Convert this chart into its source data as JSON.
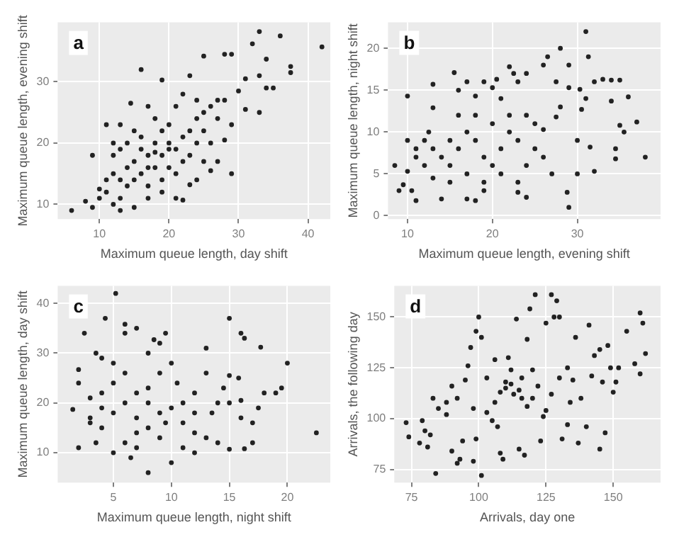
{
  "chart_data": [
    {
      "type": "scatter",
      "title": "a",
      "xlabel": "Maximum queue length, day shift",
      "ylabel": "Maximum queue length, evening shift",
      "color": "#222222",
      "marker": "circle",
      "grid": true,
      "legend": false,
      "xlim": [
        4,
        43.2
      ],
      "ylim": [
        7.6,
        39.7
      ],
      "xticks": [
        10,
        20,
        30,
        40
      ],
      "yticks": [
        10,
        20,
        30
      ],
      "x": [
        6,
        8,
        9,
        42,
        36,
        33,
        32,
        37.5,
        37.5,
        34,
        35,
        34,
        33,
        33,
        31,
        29,
        29,
        26,
        25,
        28,
        29,
        31,
        30,
        16,
        19,
        23,
        14.5,
        17,
        11,
        13,
        9,
        10,
        11,
        12,
        13,
        13,
        15,
        17,
        21,
        22,
        23,
        24,
        27,
        28,
        27,
        26,
        25,
        24,
        22,
        21,
        20,
        19,
        18,
        17,
        16,
        15,
        14,
        13,
        12,
        11,
        12,
        14,
        15,
        18,
        20,
        22,
        23,
        20,
        19,
        21,
        24,
        25,
        26,
        18,
        16,
        14,
        17,
        19,
        10,
        22,
        23,
        25,
        27,
        28,
        24,
        20,
        21,
        19,
        18,
        16,
        13,
        12,
        15,
        17
      ],
      "values": [
        9,
        10.5,
        9.5,
        35.7,
        37.5,
        38.2,
        36.2,
        32.5,
        31.5,
        33.7,
        29,
        29,
        31,
        25,
        25.5,
        23,
        15,
        15.5,
        34.2,
        34.5,
        34.5,
        30.5,
        28.5,
        32,
        30.3,
        31,
        26.5,
        26,
        23,
        23,
        18,
        12.5,
        14,
        10,
        9,
        11,
        9.5,
        11,
        11,
        10.7,
        13.2,
        14,
        17,
        20.5,
        24,
        26,
        25,
        27,
        28,
        26,
        23,
        22,
        20,
        18,
        19,
        17,
        16,
        14,
        15,
        12,
        18,
        20,
        22,
        16,
        19,
        21,
        18,
        16,
        14,
        15,
        20,
        22,
        20,
        24,
        15,
        13,
        13,
        12,
        11,
        17,
        22,
        17,
        27,
        27,
        24,
        20,
        19,
        18,
        18.5,
        21,
        19,
        20,
        14,
        16
      ]
    },
    {
      "type": "scatter",
      "title": "b",
      "xlabel": "Maximum queue length, evening shift",
      "ylabel": "Maximum queue length, night shift",
      "color": "#222222",
      "marker": "circle",
      "grid": true,
      "legend": false,
      "xlim": [
        7.7,
        39.8
      ],
      "ylim": [
        -0.4,
        23.1
      ],
      "xticks": [
        10,
        20,
        30
      ],
      "yticks": [
        0,
        5,
        10,
        15,
        20
      ],
      "x": [
        9,
        8.5,
        9.5,
        10,
        10,
        10,
        10.5,
        11,
        11,
        12,
        12.5,
        13,
        13,
        13,
        14,
        15,
        15.5,
        16,
        17,
        17,
        18,
        18,
        19,
        19,
        20,
        20.5,
        21,
        22,
        22.5,
        23,
        23,
        24,
        24,
        25,
        26,
        26.5,
        27.5,
        27.5,
        28,
        29,
        29,
        29,
        28.8,
        30,
        30,
        30.3,
        31,
        31,
        31.3,
        31.5,
        32,
        32,
        33,
        34,
        34,
        35,
        36,
        35,
        35.5,
        34.5,
        34.5,
        37,
        38,
        30.5,
        28,
        26,
        25,
        24,
        23,
        22,
        21,
        20,
        19,
        18,
        17,
        16,
        15,
        14,
        13,
        12,
        11,
        16,
        18,
        20,
        22,
        19,
        21,
        23,
        17,
        15,
        26,
        27,
        24
      ],
      "values": [
        3,
        6,
        3.7,
        14.3,
        9,
        5.3,
        3,
        1.8,
        8,
        6,
        10,
        12.9,
        15.7,
        4.5,
        2,
        9,
        17.1,
        15,
        16,
        2,
        14.3,
        1.8,
        16,
        3,
        15.3,
        16.3,
        14,
        17.8,
        17,
        16,
        2.8,
        17,
        2.2,
        11,
        18,
        19,
        16,
        11.8,
        20,
        18,
        15.3,
        1,
        2.8,
        9,
        5,
        15.1,
        22,
        14,
        19,
        8.2,
        5.3,
        16,
        16.3,
        16.2,
        13.7,
        16.2,
        14.2,
        10.8,
        10,
        8,
        6.8,
        11.2,
        7,
        12.7,
        13,
        10.3,
        8,
        6,
        9,
        10,
        8,
        6,
        7,
        9,
        10,
        8,
        6,
        7,
        8,
        9,
        7,
        12,
        12,
        11,
        12,
        4,
        5,
        4,
        5,
        4,
        7,
        5,
        12
      ]
    },
    {
      "type": "scatter",
      "title": "c",
      "xlabel": "Maximum queue length, night shift",
      "ylabel": "Maximum queue length, day shift",
      "color": "#222222",
      "marker": "circle",
      "grid": true,
      "legend": false,
      "xlim": [
        0.2,
        23.7
      ],
      "ylim": [
        4,
        43.5
      ],
      "xticks": [
        5,
        10,
        15,
        20
      ],
      "yticks": [
        10,
        20,
        30,
        40
      ],
      "x": [
        1.5,
        2,
        2,
        2,
        2.5,
        3,
        3.5,
        3.5,
        4,
        4,
        4.3,
        5.2,
        5,
        5,
        6,
        6,
        6.5,
        7,
        7,
        7,
        8,
        8,
        8,
        8.5,
        9,
        9,
        9.5,
        9.5,
        10,
        10,
        10.5,
        11,
        11,
        12,
        12,
        13,
        13,
        13.5,
        14,
        14,
        14.5,
        15,
        15,
        15,
        15,
        15.8,
        16,
        16.3,
        16,
        16,
        16.3,
        17,
        17,
        17.5,
        17.7,
        18,
        19,
        19.5,
        20,
        22.5,
        3,
        4,
        5,
        6,
        7,
        8,
        9,
        10,
        11,
        12,
        6,
        7,
        9,
        12,
        13,
        5,
        6,
        8,
        4,
        3
      ],
      "values": [
        18.7,
        11,
        24,
        26.7,
        34,
        16,
        30,
        12,
        22,
        29,
        37,
        42,
        18,
        10,
        35.8,
        34,
        9,
        35,
        22,
        14,
        30,
        6,
        20,
        32.7,
        32,
        26,
        34,
        16,
        8,
        28,
        24,
        20,
        11,
        22,
        14,
        31,
        26,
        18,
        12,
        20,
        23,
        37,
        25.5,
        10.7,
        20,
        25,
        34,
        33,
        17,
        20.5,
        10.8,
        16,
        12,
        19,
        31.2,
        22,
        22,
        23,
        28,
        14,
        21,
        15,
        24,
        20,
        17,
        15,
        18,
        19,
        16,
        18,
        12,
        11,
        13,
        10,
        13,
        28,
        26,
        23,
        19,
        17
      ]
    },
    {
      "type": "scatter",
      "title": "d",
      "xlabel": "Arrivals, day one",
      "ylabel": "Arrivals, the following day",
      "color": "#222222",
      "marker": "circle",
      "grid": true,
      "legend": false,
      "xlim": [
        68.6,
        167.6
      ],
      "ylim": [
        68.5,
        165.3
      ],
      "xticks": [
        75,
        100,
        125,
        150
      ],
      "yticks": [
        75,
        100,
        125,
        150
      ],
      "x": [
        73,
        74,
        78,
        79,
        80,
        81,
        82,
        83,
        84,
        85,
        88,
        90,
        90,
        92,
        93,
        94,
        95,
        96,
        97,
        98,
        99,
        99,
        100,
        101,
        101,
        103,
        105,
        106,
        107,
        108,
        108,
        109,
        110,
        111,
        112,
        114,
        115,
        116,
        117,
        118,
        119,
        120,
        121,
        123,
        124,
        125,
        127,
        128,
        129,
        130,
        131,
        133,
        134,
        135,
        136,
        137,
        138,
        140,
        141,
        142,
        143,
        145,
        145,
        146,
        147,
        148,
        149,
        150,
        151,
        152,
        155,
        158,
        160,
        160,
        161,
        162,
        88,
        92,
        98,
        103,
        106,
        110,
        113,
        115,
        118,
        120,
        122,
        125,
        127,
        130,
        133,
        112,
        116
      ],
      "values": [
        98,
        91,
        88,
        99,
        94,
        86,
        92,
        110,
        73,
        105,
        102,
        84,
        116,
        78,
        80,
        89,
        119,
        126,
        135,
        79,
        90,
        143,
        150,
        140,
        72,
        120,
        99,
        129,
        96,
        113,
        83,
        80,
        118,
        130,
        124,
        149,
        85,
        110,
        82,
        139,
        154,
        124,
        161,
        89,
        101,
        147,
        161,
        150,
        158,
        150,
        90,
        97,
        108,
        119,
        140,
        88,
        110,
        96,
        146,
        121,
        131,
        134,
        85,
        118,
        93,
        136,
        125,
        113,
        118,
        125,
        143,
        127,
        122,
        152,
        147,
        132,
        108,
        110,
        105,
        103,
        108,
        115,
        112,
        114,
        106,
        110,
        116,
        104,
        112,
        120,
        125,
        117,
        120
      ]
    }
  ]
}
